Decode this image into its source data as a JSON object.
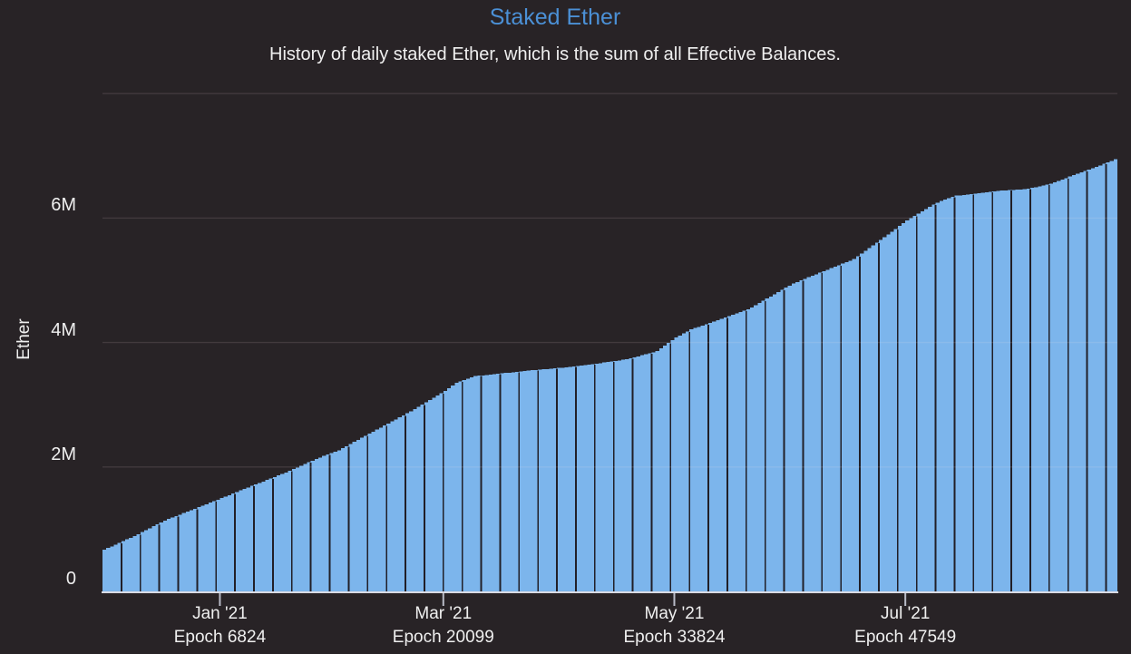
{
  "chart": {
    "title": "Staked Ether",
    "subtitle": "History of daily staked Ether, which is the sum of all Effective Balances.",
    "y_axis_title": "Ether"
  },
  "chart_data": {
    "type": "area",
    "title": "Staked Ether",
    "subtitle": "History of daily staked Ether, which is the sum of all Effective Balances.",
    "series_name": "Staked Ether",
    "ylabel": "Ether",
    "units": "million ETH",
    "x_unit": "days since first bar (Dec 1 2020)",
    "ylim": [
      0,
      8
    ],
    "grid": true,
    "legend": false,
    "y_ticks": [
      {
        "value": 0,
        "label": "0"
      },
      {
        "value": 2,
        "label": "2M"
      },
      {
        "value": 4,
        "label": "4M"
      },
      {
        "value": 6,
        "label": "6M"
      }
    ],
    "y_gridlines": [
      2,
      4,
      6,
      8
    ],
    "x_ticks": [
      {
        "day": 31,
        "month": "Jan '21",
        "epoch": "Epoch 6824"
      },
      {
        "day": 90,
        "month": "Mar '21",
        "epoch": "Epoch 20099"
      },
      {
        "day": 151,
        "month": "May '21",
        "epoch": "Epoch 33824"
      },
      {
        "day": 212,
        "month": "Jul '21",
        "epoch": "Epoch 47549"
      }
    ],
    "x_total_days": 268,
    "bar_group_days": 5,
    "points_day_millionETH": [
      [
        0,
        0.67
      ],
      [
        8,
        0.89
      ],
      [
        16,
        1.14
      ],
      [
        24,
        1.33
      ],
      [
        31,
        1.5
      ],
      [
        40,
        1.72
      ],
      [
        48,
        1.91
      ],
      [
        56,
        2.13
      ],
      [
        62,
        2.27
      ],
      [
        72,
        2.6
      ],
      [
        82,
        2.93
      ],
      [
        90,
        3.22
      ],
      [
        93,
        3.35
      ],
      [
        98,
        3.46
      ],
      [
        106,
        3.51
      ],
      [
        114,
        3.56
      ],
      [
        122,
        3.6
      ],
      [
        130,
        3.66
      ],
      [
        138,
        3.73
      ],
      [
        146,
        3.86
      ],
      [
        151,
        4.08
      ],
      [
        155,
        4.21
      ],
      [
        170,
        4.53
      ],
      [
        182,
        4.95
      ],
      [
        198,
        5.34
      ],
      [
        212,
        5.96
      ],
      [
        220,
        6.25
      ],
      [
        225,
        6.36
      ],
      [
        237,
        6.44
      ],
      [
        244,
        6.47
      ],
      [
        250,
        6.55
      ],
      [
        256,
        6.69
      ],
      [
        262,
        6.82
      ],
      [
        268,
        6.97
      ]
    ]
  },
  "colors": {
    "background": "#282326",
    "bar": "#7cb5ec",
    "bar_separator": "#211f27",
    "gridline": "rgba(255,231,231,0.12)",
    "axis_line": "#d9dae3",
    "tick_mark": "#b9bcc8",
    "title": "#4b90d6",
    "text": "#efefef"
  }
}
